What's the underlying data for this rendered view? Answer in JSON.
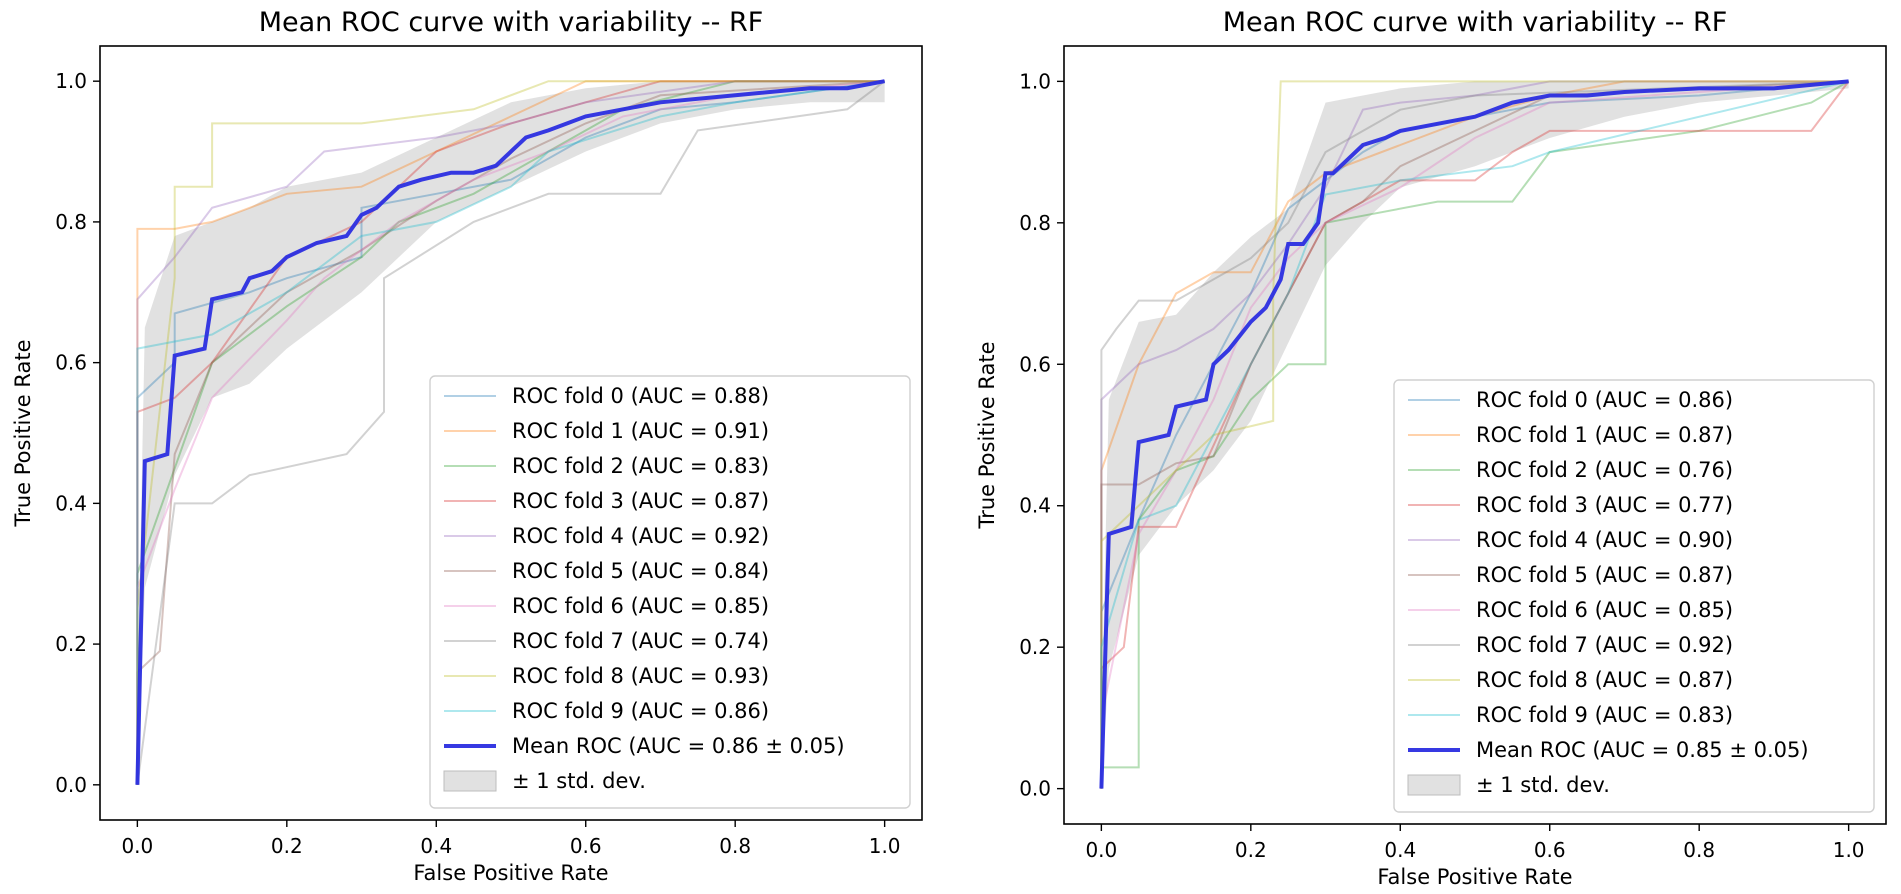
{
  "chart_data": [
    {
      "type": "line",
      "title": "Mean ROC curve with variability -- RF",
      "xlabel": "False Positive Rate",
      "ylabel": "True Positive Rate",
      "xlim": [
        -0.05,
        1.05
      ],
      "ylim": [
        -0.05,
        1.05
      ],
      "xticks": [
        "0.0",
        "0.2",
        "0.4",
        "0.6",
        "0.8",
        "1.0"
      ],
      "yticks": [
        "0.0",
        "0.2",
        "0.4",
        "0.6",
        "0.8",
        "1.0"
      ],
      "legend_position": "lower-right",
      "series": [
        {
          "name": "ROC fold 0 (AUC = 0.88)",
          "color": "#1f77b4",
          "x": [
            0,
            0,
            0.05,
            0.05,
            0.15,
            0.2,
            0.3,
            0.3,
            0.4,
            0.5,
            0.6,
            0.7,
            0.8,
            1.0
          ],
          "y": [
            0,
            0.55,
            0.6,
            0.67,
            0.7,
            0.72,
            0.75,
            0.82,
            0.84,
            0.86,
            0.92,
            0.96,
            0.97,
            1.0
          ]
        },
        {
          "name": "ROC fold 1 (AUC = 0.91)",
          "color": "#ff7f0e",
          "x": [
            0,
            0,
            0.05,
            0.1,
            0.2,
            0.3,
            0.4,
            0.5,
            0.6,
            0.7,
            1.0
          ],
          "y": [
            0,
            0.79,
            0.79,
            0.8,
            0.84,
            0.85,
            0.9,
            0.95,
            1.0,
            1.0,
            1.0
          ]
        },
        {
          "name": "ROC fold 2 (AUC = 0.83)",
          "color": "#2ca02c",
          "x": [
            0,
            0,
            0.05,
            0.1,
            0.2,
            0.3,
            0.35,
            0.45,
            0.55,
            0.65,
            0.8,
            1.0
          ],
          "y": [
            0,
            0.3,
            0.45,
            0.6,
            0.68,
            0.75,
            0.8,
            0.84,
            0.9,
            0.96,
            1.0,
            1.0
          ]
        },
        {
          "name": "ROC fold 3 (AUC = 0.87)",
          "color": "#d62728",
          "x": [
            0,
            0,
            0.05,
            0.1,
            0.2,
            0.3,
            0.4,
            0.5,
            0.6,
            0.7,
            1.0
          ],
          "y": [
            0,
            0.53,
            0.55,
            0.6,
            0.75,
            0.8,
            0.9,
            0.94,
            0.97,
            1.0,
            1.0
          ]
        },
        {
          "name": "ROC fold 4 (AUC = 0.92)",
          "color": "#9467bd",
          "x": [
            0,
            0,
            0.05,
            0.1,
            0.2,
            0.25,
            0.4,
            0.5,
            0.6,
            0.8,
            1.0
          ],
          "y": [
            0,
            0.69,
            0.75,
            0.82,
            0.85,
            0.9,
            0.92,
            0.94,
            0.97,
            1.0,
            1.0
          ]
        },
        {
          "name": "ROC fold 5 (AUC = 0.84)",
          "color": "#8c564b",
          "x": [
            0,
            0,
            0.03,
            0.05,
            0.1,
            0.2,
            0.3,
            0.4,
            0.5,
            0.6,
            0.7,
            1.0
          ],
          "y": [
            0,
            0.16,
            0.19,
            0.47,
            0.6,
            0.7,
            0.76,
            0.83,
            0.89,
            0.94,
            0.98,
            1.0
          ]
        },
        {
          "name": "ROC fold 6 (AUC = 0.85)",
          "color": "#e377c2",
          "x": [
            0,
            0,
            0.05,
            0.1,
            0.2,
            0.25,
            0.35,
            0.45,
            0.55,
            0.65,
            0.8,
            1.0
          ],
          "y": [
            0,
            0.28,
            0.42,
            0.55,
            0.66,
            0.72,
            0.8,
            0.86,
            0.9,
            0.95,
            0.98,
            1.0
          ]
        },
        {
          "name": "ROC fold 7 (AUC = 0.74)",
          "color": "#7f7f7f",
          "x": [
            0,
            0.05,
            0.1,
            0.15,
            0.28,
            0.33,
            0.33,
            0.45,
            0.55,
            0.6,
            0.7,
            0.75,
            0.95,
            1.0
          ],
          "y": [
            0,
            0.4,
            0.4,
            0.44,
            0.47,
            0.53,
            0.72,
            0.8,
            0.84,
            0.84,
            0.84,
            0.93,
            0.96,
            1.0
          ]
        },
        {
          "name": "ROC fold 8 (AUC = 0.93)",
          "color": "#bcbd22",
          "x": [
            0,
            0,
            0.05,
            0.05,
            0.1,
            0.1,
            0.3,
            0.45,
            0.55,
            0.65,
            1.0
          ],
          "y": [
            0,
            0.25,
            0.72,
            0.85,
            0.85,
            0.94,
            0.94,
            0.96,
            1.0,
            1.0,
            1.0
          ]
        },
        {
          "name": "ROC fold 9 (AUC = 0.86)",
          "color": "#17becf",
          "x": [
            0,
            0,
            0.05,
            0.1,
            0.2,
            0.3,
            0.4,
            0.5,
            0.55,
            0.7,
            0.8,
            1.0
          ],
          "y": [
            0,
            0.62,
            0.63,
            0.64,
            0.7,
            0.78,
            0.8,
            0.85,
            0.9,
            0.95,
            0.97,
            1.0
          ]
        },
        {
          "name": "Mean ROC (AUC = 0.86 ± 0.05)",
          "color": "#2b2ee0",
          "mean": true,
          "x": [
            0,
            0.01,
            0.04,
            0.05,
            0.09,
            0.1,
            0.14,
            0.15,
            0.18,
            0.2,
            0.24,
            0.28,
            0.3,
            0.32,
            0.35,
            0.38,
            0.42,
            0.45,
            0.48,
            0.5,
            0.52,
            0.55,
            0.6,
            0.65,
            0.7,
            0.8,
            0.9,
            0.95,
            1.0
          ],
          "y": [
            0,
            0.46,
            0.47,
            0.61,
            0.62,
            0.69,
            0.7,
            0.72,
            0.73,
            0.75,
            0.77,
            0.78,
            0.81,
            0.82,
            0.85,
            0.86,
            0.87,
            0.87,
            0.88,
            0.9,
            0.92,
            0.93,
            0.95,
            0.96,
            0.97,
            0.98,
            0.99,
            0.99,
            1.0
          ]
        }
      ],
      "std_band": {
        "name": "± 1 std. dev.",
        "color": "#c8c8c8",
        "x": [
          0,
          0.01,
          0.05,
          0.1,
          0.15,
          0.2,
          0.3,
          0.4,
          0.5,
          0.6,
          0.7,
          0.8,
          0.9,
          1.0
        ],
        "upper": [
          0.12,
          0.65,
          0.78,
          0.8,
          0.82,
          0.85,
          0.87,
          0.92,
          0.97,
          0.99,
          1.0,
          1.0,
          1.0,
          1.0
        ],
        "lower": [
          0,
          0.28,
          0.44,
          0.55,
          0.57,
          0.62,
          0.7,
          0.8,
          0.85,
          0.9,
          0.94,
          0.96,
          0.97,
          0.97
        ]
      }
    },
    {
      "type": "line",
      "title": "Mean ROC curve with variability -- RF",
      "xlabel": "False Positive Rate",
      "ylabel": "True Positive Rate",
      "xlim": [
        -0.05,
        1.05
      ],
      "ylim": [
        -0.05,
        1.05
      ],
      "xticks": [
        "0.0",
        "0.2",
        "0.4",
        "0.6",
        "0.8",
        "1.0"
      ],
      "yticks": [
        "0.0",
        "0.2",
        "0.4",
        "0.6",
        "0.8",
        "1.0"
      ],
      "legend_position": "lower-right",
      "series": [
        {
          "name": "ROC fold 0 (AUC = 0.86)",
          "color": "#1f77b4",
          "x": [
            0,
            0,
            0.05,
            0.1,
            0.15,
            0.2,
            0.25,
            0.3,
            0.35,
            0.4,
            0.5,
            0.6,
            0.8,
            1.0
          ],
          "y": [
            0,
            0.25,
            0.38,
            0.5,
            0.6,
            0.7,
            0.82,
            0.86,
            0.9,
            0.93,
            0.95,
            0.97,
            0.98,
            1.0
          ]
        },
        {
          "name": "ROC fold 1 (AUC = 0.87)",
          "color": "#ff7f0e",
          "x": [
            0,
            0,
            0.05,
            0.1,
            0.15,
            0.2,
            0.25,
            0.3,
            0.4,
            0.5,
            0.6,
            0.7,
            1.0
          ],
          "y": [
            0,
            0.45,
            0.6,
            0.7,
            0.73,
            0.73,
            0.83,
            0.87,
            0.91,
            0.95,
            0.98,
            1.0,
            1.0
          ]
        },
        {
          "name": "ROC fold 2 (AUC = 0.76)",
          "color": "#2ca02c",
          "x": [
            0,
            0,
            0.05,
            0.05,
            0.1,
            0.15,
            0.2,
            0.25,
            0.3,
            0.3,
            0.45,
            0.55,
            0.6,
            0.8,
            0.95,
            1.0
          ],
          "y": [
            0,
            0.03,
            0.03,
            0.38,
            0.45,
            0.47,
            0.55,
            0.6,
            0.6,
            0.8,
            0.83,
            0.83,
            0.9,
            0.93,
            0.97,
            1.0
          ]
        },
        {
          "name": "ROC fold 3 (AUC = 0.77)",
          "color": "#d62728",
          "x": [
            0,
            0,
            0.03,
            0.05,
            0.1,
            0.2,
            0.3,
            0.35,
            0.4,
            0.5,
            0.55,
            0.6,
            0.95,
            1.0
          ],
          "y": [
            0,
            0.17,
            0.2,
            0.37,
            0.37,
            0.6,
            0.8,
            0.83,
            0.86,
            0.86,
            0.9,
            0.93,
            0.93,
            1.0
          ]
        },
        {
          "name": "ROC fold 4 (AUC = 0.90)",
          "color": "#9467bd",
          "x": [
            0,
            0,
            0.05,
            0.1,
            0.15,
            0.2,
            0.25,
            0.3,
            0.35,
            0.4,
            0.5,
            0.6,
            1.0
          ],
          "y": [
            0,
            0.55,
            0.6,
            0.62,
            0.65,
            0.7,
            0.77,
            0.85,
            0.96,
            0.97,
            0.98,
            1.0,
            1.0
          ]
        },
        {
          "name": "ROC fold 5 (AUC = 0.87)",
          "color": "#8c564b",
          "x": [
            0,
            0,
            0.05,
            0.1,
            0.15,
            0.2,
            0.3,
            0.35,
            0.4,
            0.5,
            0.6,
            1.0
          ],
          "y": [
            0,
            0.43,
            0.43,
            0.46,
            0.47,
            0.6,
            0.8,
            0.83,
            0.88,
            0.93,
            0.98,
            1.0
          ]
        },
        {
          "name": "ROC fold 6 (AUC = 0.85)",
          "color": "#e377c2",
          "x": [
            0,
            0,
            0.05,
            0.1,
            0.15,
            0.2,
            0.25,
            0.3,
            0.4,
            0.5,
            0.6,
            1.0
          ],
          "y": [
            0,
            0.1,
            0.36,
            0.45,
            0.55,
            0.68,
            0.75,
            0.8,
            0.85,
            0.92,
            0.97,
            1.0
          ]
        },
        {
          "name": "ROC fold 7 (AUC = 0.92)",
          "color": "#7f7f7f",
          "x": [
            0,
            0,
            0.02,
            0.05,
            0.1,
            0.2,
            0.25,
            0.3,
            0.4,
            0.5,
            1.0
          ],
          "y": [
            0,
            0.62,
            0.65,
            0.69,
            0.69,
            0.75,
            0.8,
            0.9,
            0.96,
            0.98,
            1.0
          ]
        },
        {
          "name": "ROC fold 8 (AUC = 0.87)",
          "color": "#bcbd22",
          "x": [
            0,
            0,
            0.05,
            0.15,
            0.23,
            0.23,
            0.24,
            0.35,
            0.5,
            1.0
          ],
          "y": [
            0,
            0.35,
            0.4,
            0.5,
            0.52,
            0.7,
            1.0,
            1.0,
            1.0,
            1.0
          ]
        },
        {
          "name": "ROC fold 9 (AUC = 0.83)",
          "color": "#17becf",
          "x": [
            0,
            0,
            0.05,
            0.1,
            0.15,
            0.2,
            0.25,
            0.3,
            0.4,
            0.55,
            0.6,
            1.0
          ],
          "y": [
            0,
            0.2,
            0.38,
            0.4,
            0.5,
            0.6,
            0.7,
            0.84,
            0.86,
            0.88,
            0.9,
            1.0
          ]
        },
        {
          "name": "Mean ROC (AUC = 0.85 ± 0.05)",
          "color": "#2b2ee0",
          "mean": true,
          "x": [
            0,
            0.01,
            0.04,
            0.05,
            0.09,
            0.1,
            0.14,
            0.15,
            0.17,
            0.2,
            0.22,
            0.24,
            0.25,
            0.27,
            0.29,
            0.3,
            0.31,
            0.33,
            0.35,
            0.38,
            0.4,
            0.45,
            0.5,
            0.55,
            0.6,
            0.65,
            0.7,
            0.8,
            0.9,
            1.0
          ],
          "y": [
            0,
            0.36,
            0.37,
            0.49,
            0.5,
            0.54,
            0.55,
            0.6,
            0.62,
            0.66,
            0.68,
            0.72,
            0.77,
            0.77,
            0.8,
            0.87,
            0.87,
            0.89,
            0.91,
            0.92,
            0.93,
            0.94,
            0.95,
            0.97,
            0.98,
            0.98,
            0.985,
            0.99,
            0.99,
            1.0
          ]
        }
      ],
      "std_band": {
        "name": "± 1 std. dev.",
        "color": "#c8c8c8",
        "x": [
          0,
          0.01,
          0.05,
          0.1,
          0.15,
          0.2,
          0.25,
          0.3,
          0.35,
          0.4,
          0.5,
          0.6,
          0.7,
          0.8,
          0.9,
          1.0
        ],
        "upper": [
          0.1,
          0.55,
          0.66,
          0.67,
          0.73,
          0.78,
          0.82,
          0.97,
          0.98,
          0.99,
          1.0,
          1.0,
          1.0,
          1.0,
          1.0,
          1.0
        ],
        "lower": [
          0,
          0.17,
          0.33,
          0.4,
          0.45,
          0.52,
          0.63,
          0.74,
          0.8,
          0.85,
          0.88,
          0.92,
          0.95,
          0.97,
          0.98,
          0.99
        ]
      }
    }
  ]
}
